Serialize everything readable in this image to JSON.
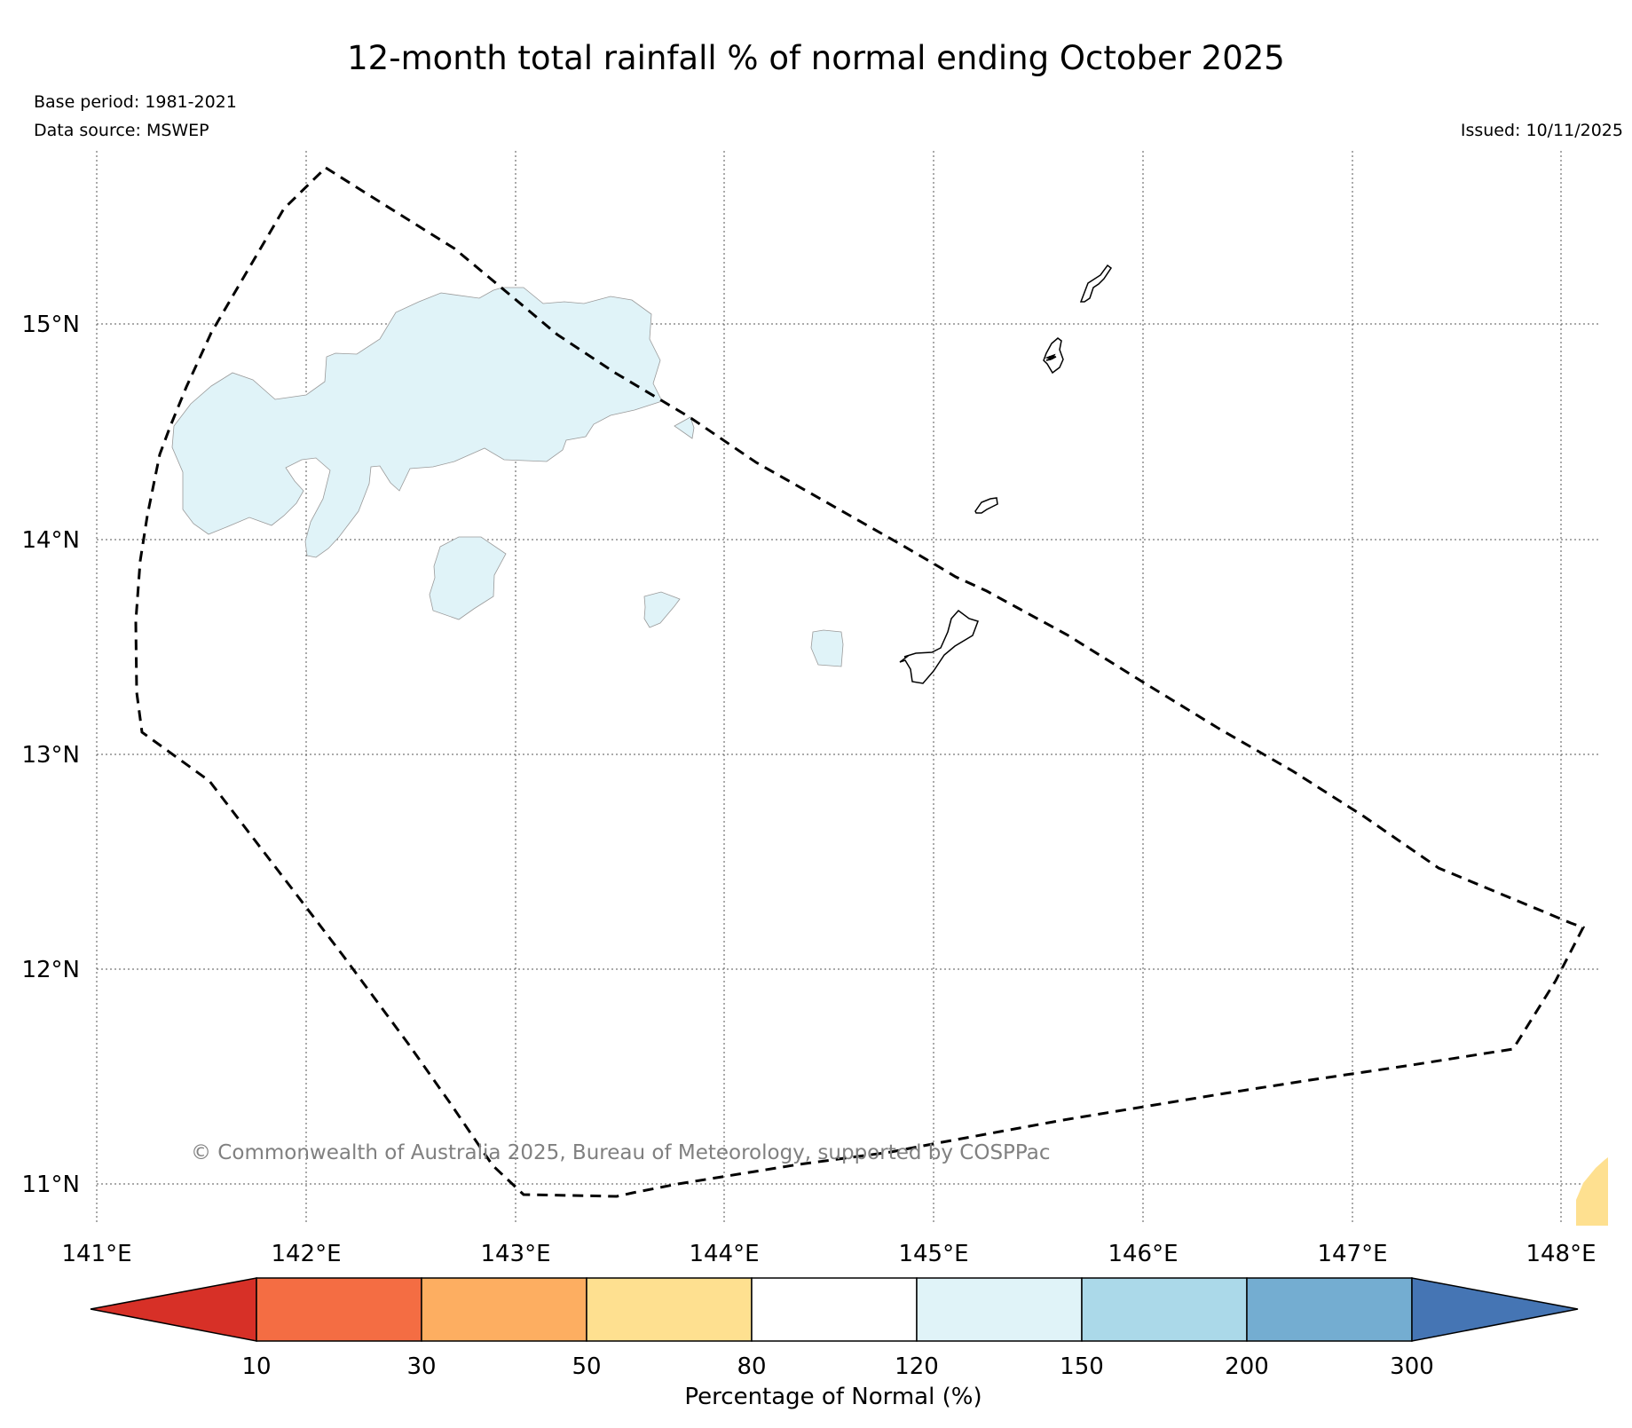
{
  "title": "12-month total rainfall % of normal ending October 2025",
  "base_period": "Base period: 1981-2021",
  "data_source": "Data source: MSWEP",
  "issued": "Issued: 10/11/2025",
  "copyright": "© Commonwealth of Australia 2025, Bureau of Meteorology, supported by COSPPac",
  "map": {
    "lon_range": [
      141,
      148.2
    ],
    "lat_range": [
      10.8,
      15.8
    ],
    "lon_ticks": [
      "141°E",
      "142°E",
      "143°E",
      "144°E",
      "145°E",
      "146°E",
      "147°E",
      "148°E"
    ],
    "lat_ticks": [
      "15°N",
      "14°N",
      "13°N",
      "12°N",
      "11°N"
    ],
    "grid": true,
    "regions": [
      {
        "category": "120-150",
        "color": "#e0f3f8",
        "location": "west of 144°E, around 14.5°N"
      },
      {
        "category": "50-80",
        "color": "#fee090",
        "location": "south-east corner near 148.1°E, 11°N"
      }
    ],
    "boundary": "EEZ (dashed line)"
  },
  "colorbar": {
    "label": "Percentage of Normal (%)",
    "ticks": [
      "10",
      "30",
      "50",
      "80",
      "120",
      "150",
      "200",
      "300"
    ],
    "colors": [
      "#d73027",
      "#f46d43",
      "#fdae61",
      "#fee090",
      "#ffffff",
      "#e0f3f8",
      "#abd9e9",
      "#74add1",
      "#4575b4"
    ]
  }
}
